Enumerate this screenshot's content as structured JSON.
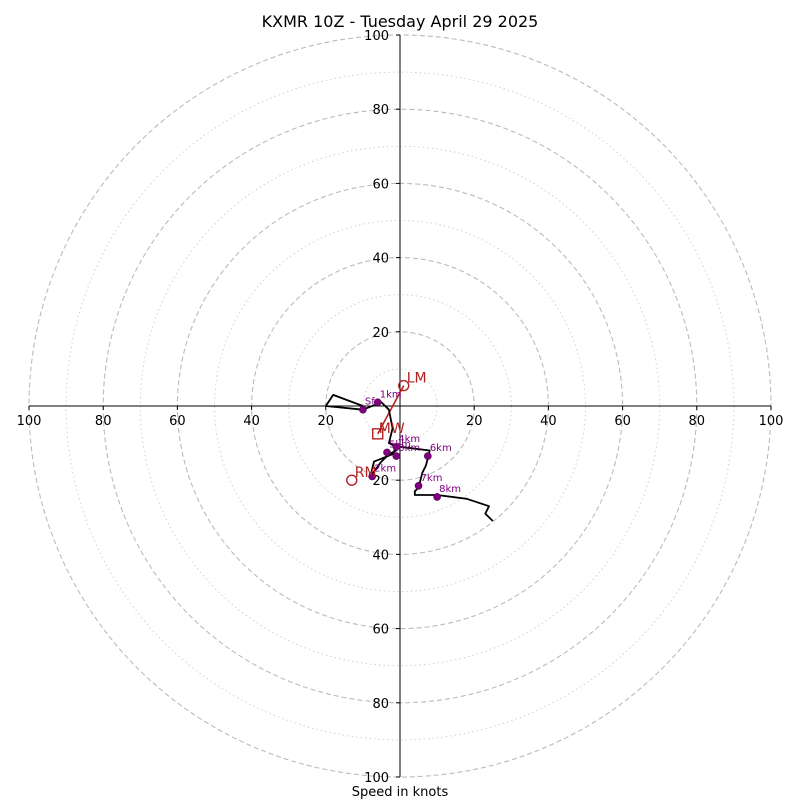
{
  "chart_data": {
    "type": "hodograph",
    "title": "KXMR 10Z - Tuesday April 29 2025",
    "xlabel": "Speed in knots",
    "units": "knots",
    "range": [
      -100,
      100
    ],
    "rings": [
      20,
      40,
      60,
      80,
      100
    ],
    "minor_rings": [
      10,
      30,
      50,
      70,
      90
    ],
    "ticks_x": [
      {
        "value": -100,
        "label": "100"
      },
      {
        "value": -80,
        "label": "80"
      },
      {
        "value": -60,
        "label": "60"
      },
      {
        "value": -40,
        "label": "40"
      },
      {
        "value": -20,
        "label": "20"
      },
      {
        "value": 20,
        "label": "20"
      },
      {
        "value": 40,
        "label": "40"
      },
      {
        "value": 60,
        "label": "60"
      },
      {
        "value": 80,
        "label": "80"
      },
      {
        "value": 100,
        "label": "100"
      }
    ],
    "ticks_y": [
      {
        "value": 100,
        "label": "100"
      },
      {
        "value": 80,
        "label": "80"
      },
      {
        "value": 60,
        "label": "60"
      },
      {
        "value": 40,
        "label": "40"
      },
      {
        "value": 20,
        "label": "20"
      },
      {
        "value": -20,
        "label": "20"
      },
      {
        "value": -40,
        "label": "40"
      },
      {
        "value": -60,
        "label": "60"
      },
      {
        "value": -80,
        "label": "80"
      },
      {
        "value": -100,
        "label": "100"
      }
    ],
    "hodograph_line": [
      [
        -10,
        0
      ],
      [
        -18,
        3
      ],
      [
        -20,
        0
      ],
      [
        -10,
        -1
      ],
      [
        -5,
        1
      ],
      [
        -3,
        -1
      ],
      [
        -2,
        -6
      ],
      [
        -3,
        -10
      ],
      [
        -1,
        -11
      ],
      [
        -2,
        -13
      ],
      [
        -7,
        -15
      ],
      [
        -8,
        -19
      ],
      [
        -5,
        -15
      ],
      [
        -3,
        -13
      ],
      [
        -1,
        -12
      ],
      [
        0,
        -11
      ],
      [
        8,
        -12
      ],
      [
        7,
        -16
      ],
      [
        6,
        -18
      ],
      [
        5,
        -22
      ],
      [
        4,
        -23
      ],
      [
        4,
        -24
      ],
      [
        10,
        -24
      ],
      [
        18,
        -25
      ],
      [
        24,
        -27
      ],
      [
        23,
        -29
      ],
      [
        25,
        -31
      ]
    ],
    "height_points": [
      {
        "label": "Sfc",
        "u": -10,
        "v": -1
      },
      {
        "label": "1km",
        "u": -6,
        "v": 1
      },
      {
        "label": "2km",
        "u": -7.5,
        "v": -19
      },
      {
        "label": "3km",
        "u": -1,
        "v": -13.5
      },
      {
        "label": "4km",
        "u": -1,
        "v": -11
      },
      {
        "label": "5km",
        "u": -3.5,
        "v": -12.5
      },
      {
        "label": "6km",
        "u": 7.5,
        "v": -13.5
      },
      {
        "label": "7km",
        "u": 5,
        "v": -21.5
      },
      {
        "label": "8km",
        "u": 10,
        "v": -24.5
      }
    ],
    "storm_motion": {
      "right_mover": {
        "label": "RM",
        "u": -13,
        "v": -20
      },
      "left_mover": {
        "label": "LM",
        "u": 1,
        "v": 5.5
      },
      "mean_wind": {
        "label": "MW",
        "u": -6,
        "v": -7.5
      },
      "color": "#b22222"
    },
    "colors": {
      "hodograph": "#000000",
      "points": "#800080",
      "grid": "#bbbbbb",
      "storm": "#b22222"
    }
  }
}
